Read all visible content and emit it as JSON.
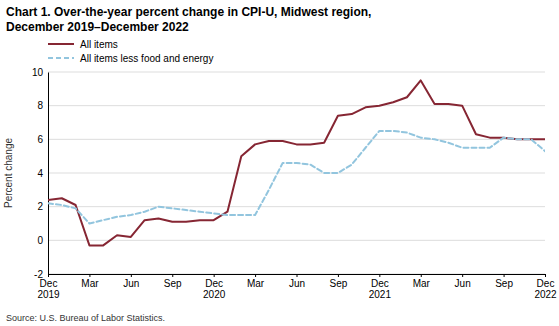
{
  "chart_data": {
    "type": "line",
    "title": "Chart 1. Over-the-year percent change in CPI-U, Midwest region,",
    "subtitle": "December 2019–December 2022",
    "y_label": "Percent change",
    "annotations": [
      "Source: U.S. Bureau of Labor Statistics."
    ],
    "categories": [
      "Dec\n2019",
      null,
      null,
      "Mar",
      null,
      null,
      "Jun",
      null,
      null,
      "Sep",
      null,
      null,
      "Dec\n2020",
      null,
      null,
      "Mar",
      null,
      null,
      "Jun",
      null,
      null,
      "Sep",
      null,
      null,
      "Dec\n2021",
      null,
      null,
      "Mar",
      null,
      null,
      "Jun",
      null,
      null,
      "Sep",
      null,
      null,
      "Dec\n2022"
    ],
    "series": [
      {
        "name": "All items",
        "color": "#862633",
        "line_style": "solid",
        "values": [
          2.4,
          2.5,
          2.1,
          -0.3,
          -0.3,
          0.3,
          0.2,
          1.2,
          1.3,
          1.1,
          1.1,
          1.2,
          1.2,
          1.7,
          5.0,
          5.7,
          5.9,
          5.9,
          5.7,
          5.7,
          5.8,
          7.4,
          7.5,
          7.9,
          8.0,
          8.2,
          8.5,
          9.5,
          8.1,
          8.1,
          8.0,
          6.3,
          6.1,
          6.1,
          6.0,
          6.0,
          6.0
        ]
      },
      {
        "name": "All items less food and energy",
        "color": "#92c5de",
        "line_style": "dashed",
        "values": [
          2.2,
          2.1,
          1.9,
          1.0,
          1.2,
          1.4,
          1.5,
          1.7,
          2.0,
          1.9,
          1.8,
          1.7,
          1.6,
          1.5,
          1.5,
          1.5,
          3.0,
          4.6,
          4.6,
          4.5,
          4.0,
          4.0,
          4.5,
          5.5,
          6.5,
          6.5,
          6.4,
          6.1,
          6.0,
          5.8,
          5.5,
          5.5,
          5.5,
          6.1,
          6.0,
          6.0,
          5.3
        ]
      }
    ],
    "ylim": [
      -2,
      10
    ],
    "yticks": [
      -2,
      0,
      2,
      4,
      6,
      8,
      10
    ],
    "grid": true,
    "legend": "upper left"
  }
}
